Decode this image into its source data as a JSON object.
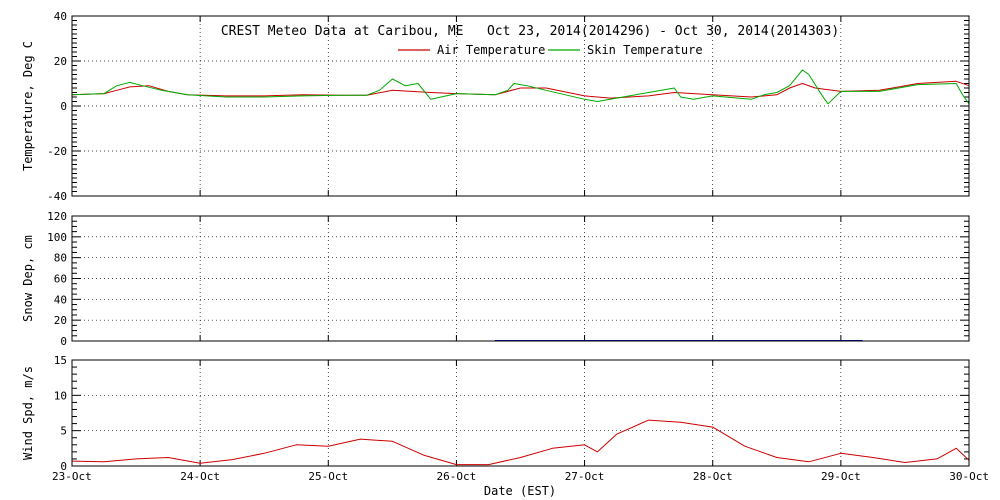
{
  "title": "CREST Meteo Data at Caribou, ME   Oct 23, 2014(2014296) - Oct 30, 2014(2014303)",
  "xlabel": "Date (EST)",
  "x_tick_labels": [
    "23-Oct",
    "24-Oct",
    "25-Oct",
    "26-Oct",
    "27-Oct",
    "28-Oct",
    "29-Oct",
    "30-Oct"
  ],
  "colors": {
    "air": "#cc0000",
    "skin": "#00aa00",
    "wind": "#cc0000",
    "snow": "#0000cc"
  },
  "chart_data": [
    {
      "type": "line",
      "ylabel": "Temperature, Deg C",
      "ylim": [
        -40,
        40
      ],
      "y_ticks": [
        -40,
        -20,
        0,
        20,
        40
      ],
      "xlim": [
        0,
        7
      ],
      "grid": true,
      "legend_position": "top-center",
      "series": [
        {
          "name": "Air Temperature",
          "color": "#cc0000",
          "x": [
            0,
            0.25,
            0.35,
            0.45,
            0.6,
            0.75,
            0.9,
            1.2,
            1.5,
            1.8,
            2.1,
            2.3,
            2.5,
            2.8,
            3.0,
            3.3,
            3.5,
            3.7,
            4.0,
            4.2,
            4.5,
            4.7,
            5.0,
            5.3,
            5.5,
            5.6,
            5.7,
            5.8,
            6.0,
            6.3,
            6.6,
            6.9,
            7.0
          ],
          "values": [
            5,
            5.5,
            7,
            8.5,
            9,
            6.5,
            5,
            4.5,
            4.5,
            5,
            4.8,
            4.8,
            7,
            6,
            5.5,
            5,
            8,
            8,
            4.5,
            3.5,
            4.5,
            6,
            5,
            4,
            5,
            8,
            10,
            8,
            6.5,
            7,
            10,
            11,
            9
          ]
        },
        {
          "name": "Skin Temperature",
          "color": "#00aa00",
          "x": [
            0,
            0.25,
            0.35,
            0.45,
            0.55,
            0.7,
            0.9,
            1.2,
            1.5,
            1.8,
            2.1,
            2.3,
            2.4,
            2.5,
            2.6,
            2.7,
            2.8,
            3.0,
            3.3,
            3.4,
            3.45,
            3.55,
            3.7,
            4.0,
            4.1,
            4.3,
            4.6,
            4.7,
            4.75,
            4.85,
            5.0,
            5.3,
            5.4,
            5.5,
            5.6,
            5.7,
            5.75,
            5.85,
            5.9,
            6.0,
            6.3,
            6.6,
            6.9,
            6.95,
            7.0
          ],
          "values": [
            5,
            5.5,
            9,
            10.5,
            9,
            7,
            5,
            4,
            4,
            4.5,
            4.8,
            4.8,
            7,
            12,
            9,
            10,
            3,
            5.5,
            5,
            7,
            10,
            9,
            7,
            3,
            2,
            4,
            7,
            8,
            4,
            3,
            4.5,
            3,
            5,
            6,
            9,
            16,
            14,
            5,
            1,
            6.5,
            6.5,
            9.5,
            10,
            5,
            1
          ]
        }
      ]
    },
    {
      "type": "line",
      "ylabel": "Snow Dep, cm",
      "ylim": [
        0,
        120
      ],
      "y_ticks": [
        0,
        20,
        40,
        60,
        80,
        100,
        120
      ],
      "xlim": [
        0,
        7
      ],
      "grid": true,
      "series": [
        {
          "color": "#0000cc",
          "x": [
            3.3,
            3.32,
            6.15,
            6.17
          ],
          "values": [
            0.5,
            0.5,
            0.5,
            0.5
          ]
        }
      ]
    },
    {
      "type": "line",
      "ylabel": "Wind Spd, m/s",
      "ylim": [
        0,
        15
      ],
      "y_ticks": [
        0,
        5,
        10,
        15
      ],
      "xlim": [
        0,
        7
      ],
      "grid": true,
      "series": [
        {
          "color": "#cc0000",
          "x": [
            0,
            0.25,
            0.5,
            0.75,
            1.0,
            1.25,
            1.5,
            1.75,
            2.0,
            2.25,
            2.5,
            2.75,
            3.0,
            3.25,
            3.5,
            3.75,
            4.0,
            4.1,
            4.25,
            4.5,
            4.75,
            5.0,
            5.25,
            5.5,
            5.75,
            6.0,
            6.25,
            6.5,
            6.75,
            6.9,
            7.0
          ],
          "values": [
            0.7,
            0.6,
            1.0,
            1.2,
            0.4,
            0.9,
            1.8,
            3.0,
            2.8,
            3.8,
            3.5,
            1.5,
            0.2,
            0.2,
            1.2,
            2.5,
            3.0,
            2.0,
            4.5,
            6.5,
            6.2,
            5.5,
            2.8,
            1.2,
            0.6,
            1.8,
            1.2,
            0.5,
            1.0,
            2.5,
            0.8
          ]
        }
      ]
    }
  ]
}
